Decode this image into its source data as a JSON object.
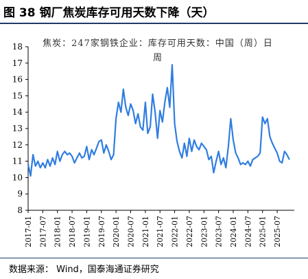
{
  "figure": {
    "title": "图 38  钢厂焦炭库存可用天数下降（天）",
    "source": "数据来源：  Wind，国泰海通证券研究"
  },
  "colors": {
    "series": "#2f7de1",
    "rule": "#1f3a68",
    "axis": "#000000"
  },
  "chart_data": {
    "type": "line",
    "title": "焦炭：247家钢铁企业：库存可用天数：中国（周）日周",
    "xlabel": "",
    "ylabel": "",
    "ylim": [
      8,
      18
    ],
    "yticks": [
      8,
      9,
      10,
      11,
      12,
      13,
      14,
      15,
      16,
      17,
      18
    ],
    "xlim": [
      "2017-01",
      "2026-02"
    ],
    "xticks": [
      "2017-01",
      "2017-07",
      "2018-01",
      "2018-07",
      "2019-01",
      "2019-07",
      "2020-01",
      "2020-07",
      "2021-01",
      "2021-07",
      "2022-01",
      "2022-07",
      "2023-01",
      "2023-07",
      "2024-01",
      "2024-07",
      "2025-01",
      "2025-07"
    ],
    "grid": false,
    "legend": "none",
    "series": [
      {
        "x": [
          "2017-01",
          "2017-02",
          "2017-03",
          "2017-04",
          "2017-05",
          "2017-06",
          "2017-07",
          "2017-08",
          "2017-09",
          "2017-10",
          "2017-11",
          "2017-12",
          "2018-01",
          "2018-02",
          "2018-03",
          "2018-04",
          "2018-05",
          "2018-06",
          "2018-07",
          "2018-08",
          "2018-09",
          "2018-10",
          "2018-11",
          "2018-12",
          "2019-01",
          "2019-02",
          "2019-03",
          "2019-04",
          "2019-05",
          "2019-06",
          "2019-07",
          "2019-08",
          "2019-09",
          "2019-10",
          "2019-11",
          "2019-12",
          "2020-01",
          "2020-02",
          "2020-03",
          "2020-04",
          "2020-05",
          "2020-06",
          "2020-07",
          "2020-08",
          "2020-09",
          "2020-10",
          "2020-11",
          "2020-12",
          "2021-01",
          "2021-02",
          "2021-03",
          "2021-04",
          "2021-05",
          "2021-06",
          "2021-07",
          "2021-08",
          "2021-09",
          "2021-10",
          "2021-11",
          "2021-12",
          "2022-01",
          "2022-02",
          "2022-03",
          "2022-04",
          "2022-05",
          "2022-06",
          "2022-07",
          "2022-08",
          "2022-09",
          "2022-10",
          "2022-11",
          "2022-12",
          "2023-01",
          "2023-02",
          "2023-03",
          "2023-04",
          "2023-05",
          "2023-06",
          "2023-07",
          "2023-08",
          "2023-09",
          "2023-10",
          "2023-11",
          "2023-12",
          "2024-01",
          "2024-02",
          "2024-03",
          "2024-04",
          "2024-05",
          "2024-06",
          "2024-07",
          "2024-08",
          "2024-09",
          "2024-10",
          "2024-11",
          "2024-12",
          "2025-01",
          "2025-02",
          "2025-03",
          "2025-04",
          "2025-05",
          "2025-06",
          "2025-07",
          "2025-08",
          "2025-09",
          "2025-10",
          "2025-11",
          "2025-12"
        ],
        "values": [
          10.8,
          10.1,
          11.4,
          10.7,
          11.0,
          10.6,
          10.9,
          10.6,
          11.1,
          10.7,
          11.2,
          10.8,
          11.6,
          11.0,
          11.4,
          11.6,
          11.4,
          11.5,
          11.3,
          10.9,
          11.2,
          11.5,
          11.2,
          11.3,
          11.9,
          11.1,
          11.7,
          11.4,
          11.8,
          12.2,
          12.3,
          11.5,
          12.0,
          11.6,
          11.1,
          11.4,
          13.6,
          14.6,
          14.0,
          15.4,
          14.3,
          13.8,
          14.5,
          14.1,
          13.3,
          13.9,
          13.1,
          12.9,
          14.6,
          12.7,
          13.1,
          15.1,
          14.0,
          12.4,
          14.1,
          13.4,
          14.6,
          15.5,
          14.3,
          16.9,
          13.3,
          12.2,
          11.6,
          11.2,
          12.1,
          11.3,
          12.4,
          11.6,
          12.3,
          11.9,
          11.7,
          12.1,
          11.9,
          11.7,
          11.1,
          11.3,
          10.3,
          11.0,
          11.6,
          10.8,
          11.2,
          10.6,
          11.9,
          13.6,
          12.3,
          11.5,
          11.2,
          10.8,
          10.9,
          10.8,
          11.0,
          10.7,
          11.1,
          11.2,
          11.3,
          11.5,
          13.7,
          13.3,
          13.6,
          12.5,
          12.1,
          11.8,
          11.5,
          11.0,
          10.9,
          11.6,
          11.4,
          11.1
        ]
      }
    ]
  }
}
